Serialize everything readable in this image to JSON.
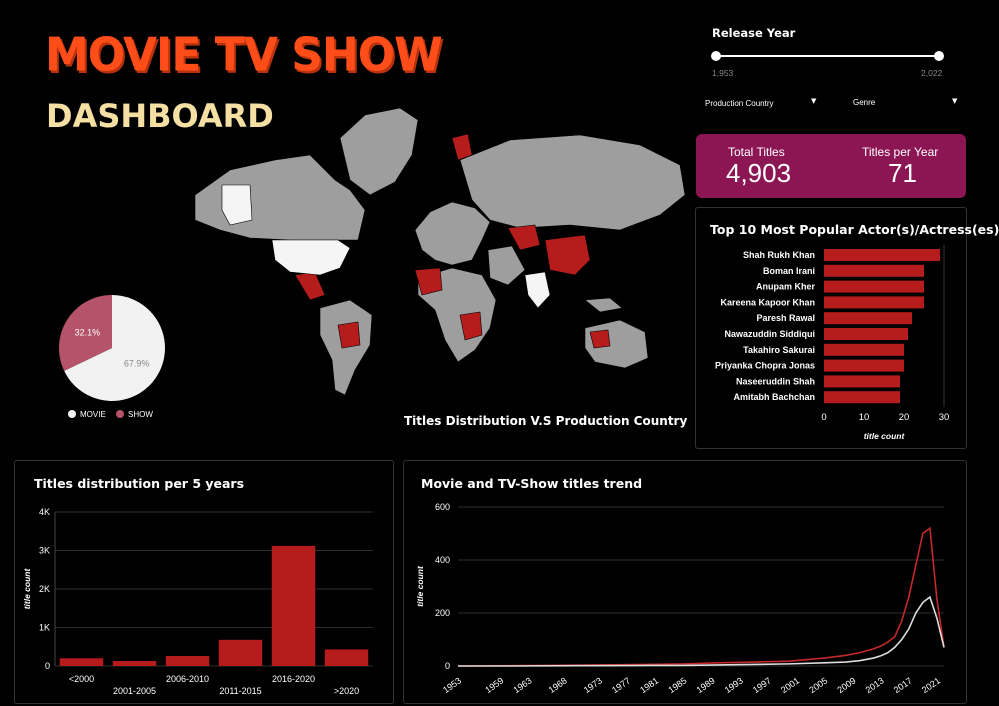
{
  "header": {
    "title_line1": "MOVIE TV SHOW",
    "title_line2": "DASHBOARD"
  },
  "filters": {
    "release_year_label": "Release Year",
    "release_year_min": "1,953",
    "release_year_max": "2,022",
    "production_country_label": "Production Country",
    "genre_label": "Genre"
  },
  "kpis": {
    "total_titles_label": "Total Titles",
    "total_titles_value": "4,903",
    "titles_per_year_label": "Titles per Year",
    "titles_per_year_value": "71"
  },
  "map": {
    "caption": "Titles Distribution V.S Production Country"
  },
  "colors": {
    "accent_red": "#b71c1c",
    "kpi_bg": "#8c1654",
    "title_orange": "#ff4d1a",
    "subtitle_cream": "#f5dfa3",
    "show_pink": "#b5536a",
    "movie_white": "#f2f2f2"
  },
  "chart_data": [
    {
      "type": "pie",
      "title": "",
      "labels": [
        "MOVIE",
        "SHOW"
      ],
      "values": [
        67.9,
        32.1
      ],
      "value_labels": [
        "67.9%",
        "32.1%"
      ],
      "legend": "bottom"
    },
    {
      "type": "bar",
      "orientation": "horizontal",
      "title": "Top 10 Most Popular Actor(s)/Actress(es)",
      "xlabel": "title count",
      "categories": [
        "Shah Rukh Khan",
        "Boman Irani",
        "Anupam Kher",
        "Kareena Kapoor Khan",
        "Paresh Rawal",
        "Nawazuddin Siddiqui",
        "Takahiro Sakurai",
        "Priyanka Chopra Jonas",
        "Naseeruddin Shah",
        "Amitabh Bachchan"
      ],
      "values": [
        29,
        25,
        25,
        25,
        22,
        21,
        20,
        20,
        19,
        19
      ],
      "xlim": [
        0,
        30
      ],
      "xticks": [
        "0",
        "10",
        "20",
        "30"
      ]
    },
    {
      "type": "bar",
      "title": "Titles distribution per 5 years",
      "ylabel": "title count",
      "categories": [
        "<2000",
        "2001-2005",
        "2006-2010",
        "2011-2015",
        "2016-2020",
        ">2020"
      ],
      "values": [
        200,
        130,
        260,
        680,
        3120,
        430
      ],
      "ylim": [
        0,
        4000
      ],
      "yticks": [
        "0",
        "1K",
        "2K",
        "3K",
        "4K"
      ]
    },
    {
      "type": "line",
      "title": "Movie and TV-Show titles trend",
      "ylabel": "title count",
      "ylim": [
        0,
        600
      ],
      "yticks": [
        "0",
        "200",
        "400",
        "600"
      ],
      "xticks": [
        "1953",
        "1959",
        "1963",
        "1968",
        "1973",
        "1977",
        "1981",
        "1985",
        "1989",
        "1993",
        "1997",
        "2001",
        "2005",
        "2009",
        "2013",
        "2017",
        "2021"
      ],
      "x": [
        1953,
        1960,
        1970,
        1980,
        1985,
        1990,
        1995,
        2000,
        2005,
        2008,
        2010,
        2012,
        2013,
        2014,
        2015,
        2016,
        2017,
        2018,
        2019,
        2020,
        2021,
        2022
      ],
      "series": [
        {
          "color": "#c62828",
          "values": [
            0,
            1,
            3,
            6,
            8,
            12,
            15,
            18,
            30,
            40,
            50,
            65,
            75,
            90,
            110,
            170,
            260,
            380,
            500,
            520,
            250,
            70
          ]
        },
        {
          "color": "#dddddd",
          "values": [
            0,
            0,
            1,
            2,
            2,
            4,
            6,
            8,
            12,
            15,
            20,
            30,
            38,
            50,
            70,
            100,
            140,
            200,
            240,
            260,
            180,
            70
          ]
        }
      ]
    }
  ]
}
